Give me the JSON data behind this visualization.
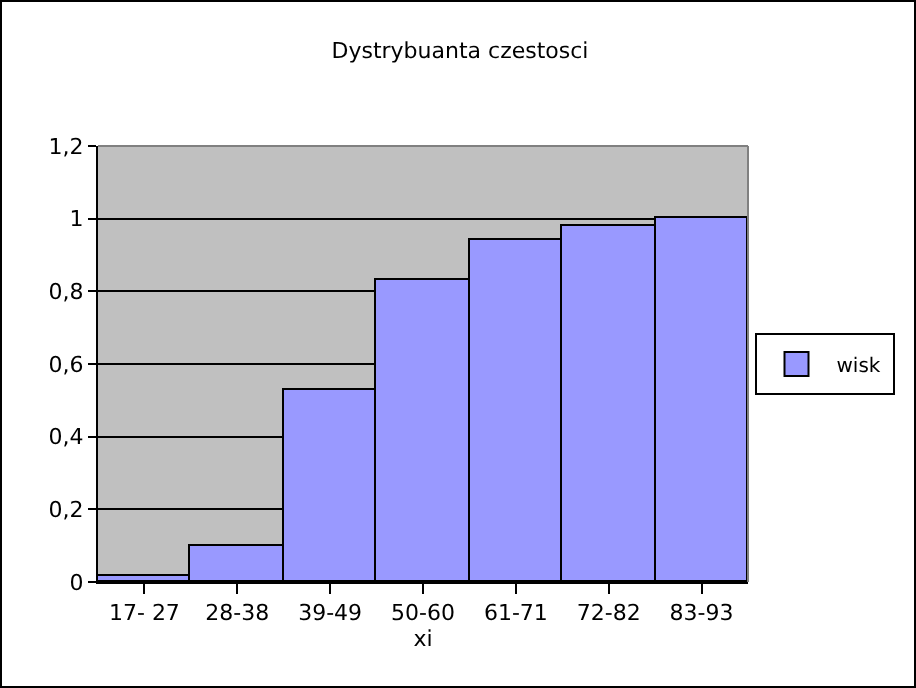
{
  "chart_data": {
    "type": "bar",
    "title": "Dystrybuanta czestosci",
    "xlabel": "xi",
    "categories": [
      "17- 27",
      "28-38",
      "39-49",
      "50-60",
      "61-71",
      "72-82",
      "83-93"
    ],
    "series": [
      {
        "name": "wisk",
        "color": "#9999ff",
        "values": [
          0.018,
          0.1,
          0.53,
          0.83,
          0.94,
          0.98,
          1.0
        ]
      }
    ],
    "ylim": [
      0,
      1.2
    ],
    "yticks": [
      0,
      {
        "value": 0.2,
        "label": "0,2"
      },
      {
        "value": 0.4,
        "label": "0,4"
      },
      {
        "value": 0.6,
        "label": "0,6"
      },
      {
        "value": 0.8,
        "label": "0,8"
      },
      1,
      {
        "value": 1.2,
        "label": "1,2"
      }
    ],
    "grid": "y",
    "legend": "right"
  }
}
